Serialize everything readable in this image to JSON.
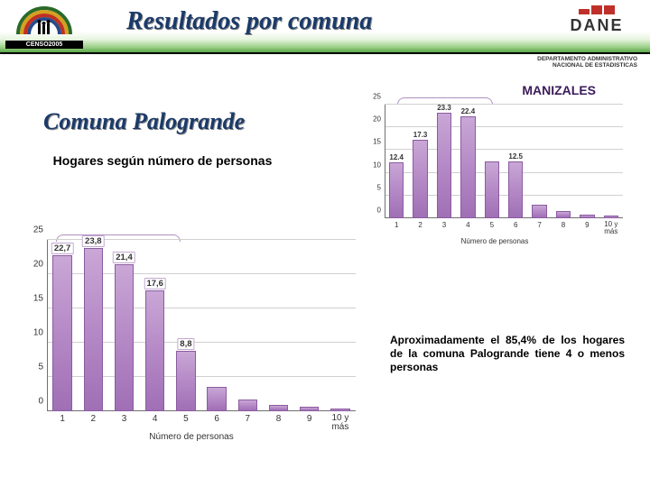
{
  "header": {
    "title": "Resultados por comuna",
    "censo_label": "CENSO2005",
    "dane_label": "DANE",
    "dane_sub1": "DEPARTAMENTO ADMINISTRATIVO",
    "dane_sub2": "NACIONAL DE ESTADISTICAS"
  },
  "city": "MANIZALES",
  "comuna_title": "Comuna Palogrande",
  "subtitle": "Hogares según número de personas",
  "summary": "Aproximadamente el 85,4% de los hogares de la comuna Palogrande tiene 4 o menos personas",
  "axis_title": "Número de personas",
  "chart_small": {
    "type": "bar",
    "ylim": [
      0,
      25
    ],
    "ytick_step": 5,
    "categories": [
      "1",
      "2",
      "3",
      "4",
      "5",
      "6",
      "7",
      "8",
      "9",
      "10 y más"
    ],
    "values": [
      12.4,
      17.3,
      23.3,
      22.4,
      null,
      12.5,
      null,
      null,
      null,
      null
    ],
    "heights_pct": [
      49.6,
      69.2,
      93.2,
      89.6,
      50.0,
      50.0,
      12.0,
      6.0,
      3.0,
      2.0
    ],
    "bar_color_top": "#c9a7d6",
    "bar_color_bottom": "#a06fb5",
    "bar_border": "#8a5ca0",
    "grid_color": "#d0d0d0",
    "background": "#ffffff",
    "label_fontsize": 8
  },
  "chart_large": {
    "type": "bar",
    "ylim": [
      0,
      25
    ],
    "ytick_step": 5,
    "categories": [
      "1",
      "2",
      "3",
      "4",
      "5",
      "6",
      "7",
      "8",
      "9",
      "10 y más"
    ],
    "values": [
      22.7,
      23.8,
      21.4,
      17.6,
      8.8,
      null,
      null,
      null,
      null,
      null
    ],
    "heights_pct": [
      90.8,
      95.2,
      85.6,
      70.4,
      35.2,
      14.0,
      7.0,
      3.5,
      2.5,
      1.8
    ],
    "bar_color_top": "#c9a7d6",
    "bar_color_bottom": "#a06fb5",
    "bar_border": "#8a5ca0",
    "grid_color": "#d0d0d0",
    "background": "#ffffff",
    "label_fontsize": 9.5
  },
  "colors": {
    "header_gradient_end": "#5aa848",
    "title_color": "#1a3a6a",
    "city_color": "#3a1a5a",
    "dane_red": "#c0302a"
  }
}
